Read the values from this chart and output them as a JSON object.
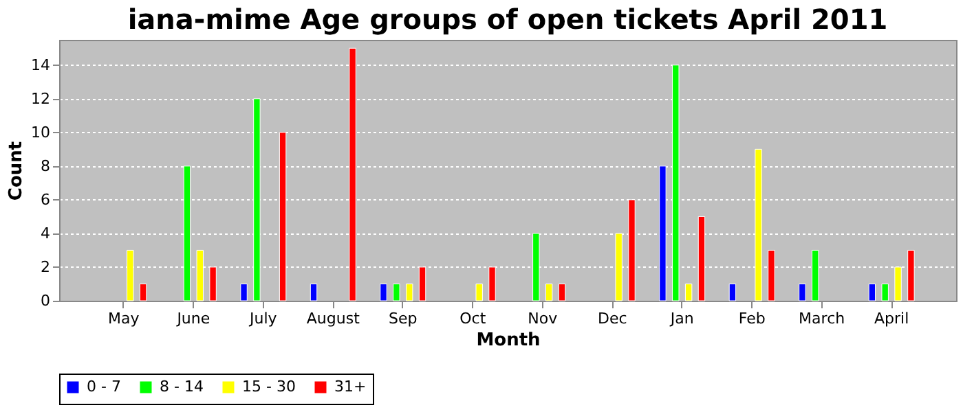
{
  "chart_data": {
    "type": "bar",
    "title": "iana-mime Age groups of open tickets April 2011",
    "xlabel": "Month",
    "ylabel": "Count",
    "categories": [
      "May",
      "June",
      "July",
      "August",
      "Sep",
      "Oct",
      "Nov",
      "Dec",
      "Jan",
      "Feb",
      "March",
      "April"
    ],
    "series": [
      {
        "name": "0 - 7",
        "color": "#0000ff",
        "values": [
          null,
          null,
          1,
          1,
          1,
          null,
          null,
          null,
          8,
          1,
          1,
          1
        ]
      },
      {
        "name": "8 - 14",
        "color": "#00ff00",
        "values": [
          null,
          8,
          12,
          null,
          1,
          null,
          4,
          null,
          14,
          null,
          3,
          1
        ]
      },
      {
        "name": "15 - 30",
        "color": "#ffff00",
        "values": [
          3,
          3,
          null,
          null,
          1,
          1,
          1,
          4,
          1,
          9,
          null,
          2
        ]
      },
      {
        "name": "31+",
        "color": "#ff0000",
        "values": [
          1,
          2,
          10,
          15,
          2,
          2,
          1,
          6,
          5,
          3,
          null,
          3
        ]
      }
    ],
    "ylim": [
      0,
      15.5
    ],
    "yticks": [
      0,
      2,
      4,
      6,
      8,
      10,
      12,
      14
    ],
    "grid": "y",
    "legend": "bottom"
  }
}
